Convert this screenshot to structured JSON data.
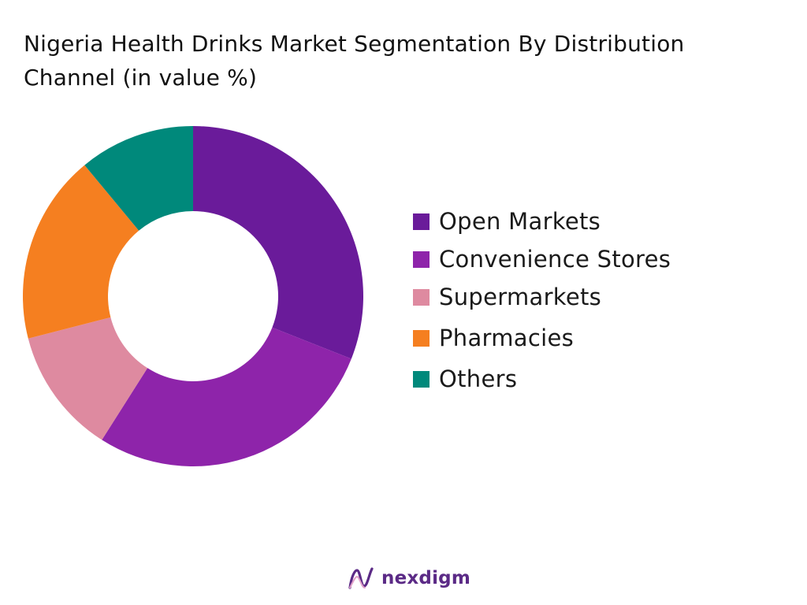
{
  "title": "Nigeria Health Drinks Market Segmentation By Distribution Channel (in value %)",
  "chart_data": {
    "type": "pie",
    "donut": true,
    "categories": [
      "Open Markets",
      "Convenience Stores",
      "Supermarkets",
      "Pharmacies",
      "Others"
    ],
    "values": [
      31,
      28,
      12,
      18,
      11
    ],
    "colors": [
      "#6a1b9a",
      "#8e24aa",
      "#de8aa0",
      "#f57f20",
      "#00897b"
    ],
    "start_angle_deg": 0,
    "direction": "clockwise",
    "legend_position": "right"
  },
  "legend": {
    "items": [
      {
        "label": "Open Markets",
        "color": "#6a1b9a"
      },
      {
        "label": "Convenience Stores",
        "color": "#8e24aa"
      },
      {
        "label": "Supermarkets",
        "color": "#de8aa0"
      },
      {
        "label": "Pharmacies",
        "color": "#f57f20"
      },
      {
        "label": "Others",
        "color": "#00897b"
      }
    ]
  },
  "brand": {
    "name": "nexdigm",
    "icon": "nexdigm-logo-icon",
    "color": "#5b2a86"
  }
}
